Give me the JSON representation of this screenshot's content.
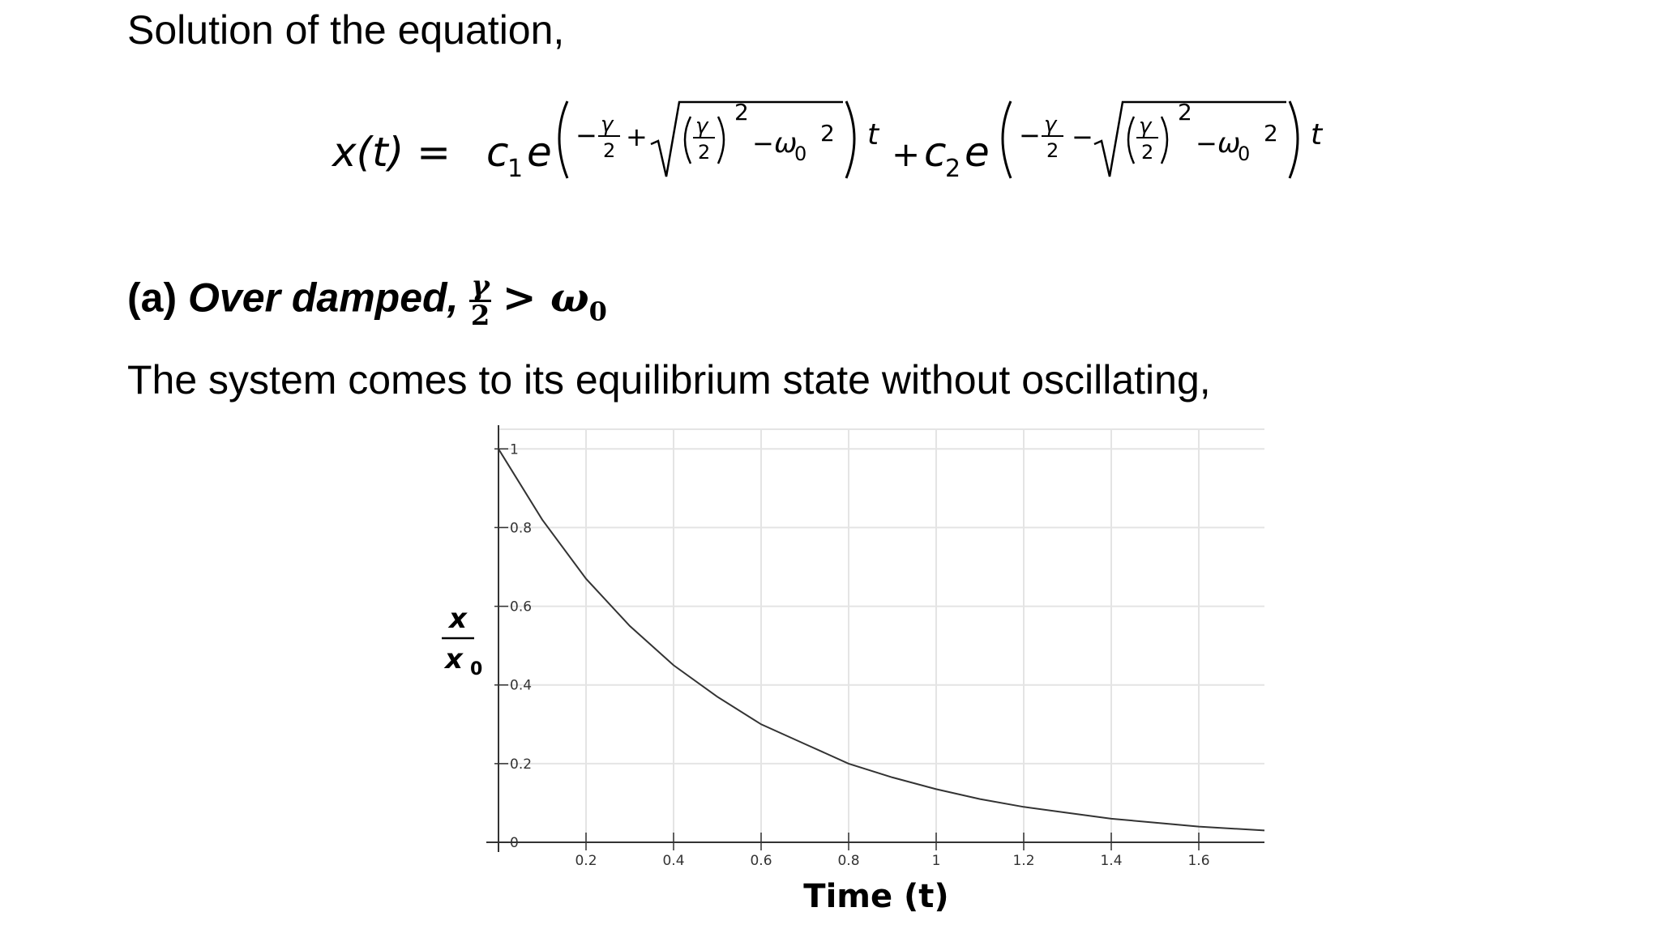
{
  "intro": "Solution of the equation,",
  "equation": {
    "lhs": "x(t) =",
    "c1": "c",
    "c1_sub": "1",
    "c2": "c",
    "c2_sub": "2",
    "plus": "+",
    "base": "e",
    "gamma": "γ",
    "two": "2",
    "omega": "ω",
    "omega_sub": "0",
    "t": "t",
    "minus": "−"
  },
  "case_a": {
    "label": "(a)",
    "title": "Over damped,",
    "gamma": "γ",
    "two": "2",
    "relation": "> ω",
    "omega_sub": "0"
  },
  "description": "The system comes to its equilibrium state without oscillating,",
  "chart_data": {
    "type": "line",
    "xlabel": "Time (t)",
    "ylabel_num": "x",
    "ylabel_den": "x",
    "ylabel_den_sub": "0",
    "xlim": [
      0,
      1.75
    ],
    "ylim": [
      0,
      1.05
    ],
    "x_ticks": [
      0.2,
      0.4,
      0.6,
      0.8,
      1,
      1.2,
      1.4,
      1.6
    ],
    "x_tick_labels": [
      "0.2",
      "0.4",
      "0.6",
      "0.8",
      "1",
      "1.2",
      "1.4",
      "1.6"
    ],
    "y_ticks": [
      0,
      0.2,
      0.4,
      0.6,
      0.8,
      1
    ],
    "y_tick_labels": [
      "0",
      "0.2",
      "0.4",
      "0.6",
      "0.8",
      "1"
    ],
    "grid": true,
    "line_color": "#333333",
    "series": [
      {
        "x": [
          0,
          0.1,
          0.2,
          0.3,
          0.4,
          0.5,
          0.6,
          0.7,
          0.8,
          0.9,
          1.0,
          1.1,
          1.2,
          1.3,
          1.4,
          1.5,
          1.6,
          1.75
        ],
        "values": [
          1.0,
          0.82,
          0.67,
          0.55,
          0.45,
          0.37,
          0.3,
          0.25,
          0.2,
          0.165,
          0.135,
          0.11,
          0.09,
          0.075,
          0.06,
          0.05,
          0.04,
          0.03
        ]
      }
    ]
  }
}
